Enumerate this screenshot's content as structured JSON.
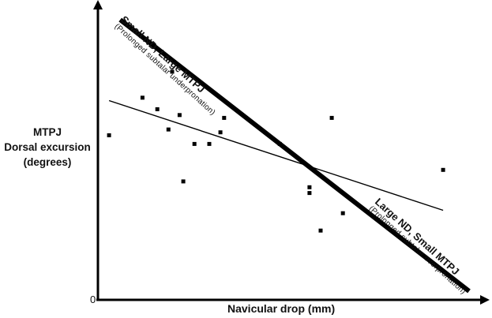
{
  "chart_data": {
    "type": "scatter",
    "ylabel": [
      "MTPJ",
      "Dorsal excursion",
      "(degrees)"
    ],
    "xlabel": "Navicular drop (mm)",
    "origin_label": "0",
    "grid": false,
    "xlim": [
      0,
      10
    ],
    "ylim": [
      0,
      10
    ],
    "points": [
      {
        "x": 0.3,
        "y": 5.7
      },
      {
        "x": 1.2,
        "y": 7.0
      },
      {
        "x": 1.6,
        "y": 6.6
      },
      {
        "x": 1.9,
        "y": 5.9
      },
      {
        "x": 2.0,
        "y": 7.9
      },
      {
        "x": 2.2,
        "y": 6.4
      },
      {
        "x": 2.3,
        "y": 4.1
      },
      {
        "x": 2.6,
        "y": 5.4
      },
      {
        "x": 3.0,
        "y": 5.4
      },
      {
        "x": 3.3,
        "y": 5.8
      },
      {
        "x": 3.4,
        "y": 6.3
      },
      {
        "x": 4.9,
        "y": 5.4
      },
      {
        "x": 5.7,
        "y": 3.9
      },
      {
        "x": 5.7,
        "y": 3.7
      },
      {
        "x": 6.0,
        "y": 2.4
      },
      {
        "x": 6.3,
        "y": 6.3
      },
      {
        "x": 6.6,
        "y": 3.0
      },
      {
        "x": 9.3,
        "y": 4.5
      }
    ],
    "lines": [
      {
        "name": "trend",
        "x": [
          0.3,
          9.3
        ],
        "y": [
          6.9,
          3.1
        ],
        "weight": "thin"
      },
      {
        "name": "model",
        "x": [
          0.6,
          10.0
        ],
        "y": [
          9.7,
          0.3
        ],
        "weight": "thick"
      }
    ],
    "annotations": [
      {
        "title": "Small ND, Large MTPJ",
        "subtitle": "(Prolonged subtalar underpronation)"
      },
      {
        "title": "Large ND, Small MTPJ",
        "subtitle": "(Prolonged subtalar overpronation)"
      }
    ]
  }
}
